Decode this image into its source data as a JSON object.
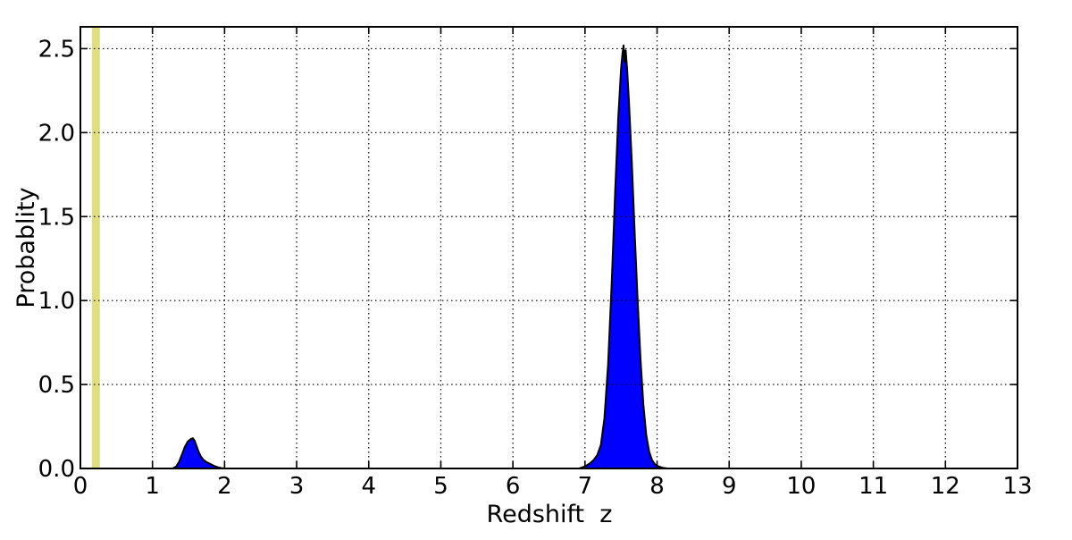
{
  "chart_data": {
    "type": "area",
    "title": "",
    "xlabel": "Redshift  z",
    "ylabel": "Probablity",
    "xlim": [
      0,
      13
    ],
    "ylim": [
      0,
      2.63
    ],
    "xticks": [
      0,
      1,
      2,
      3,
      4,
      5,
      6,
      7,
      8,
      9,
      10,
      11,
      12,
      13
    ],
    "yticks": [
      "0.0",
      "0.5",
      "1.0",
      "1.5",
      "2.0",
      "2.5"
    ],
    "grid": {
      "show": true,
      "linestyle": "dotted",
      "color": "#000000"
    },
    "frame_color": "#000000",
    "background_color": "#ffffff",
    "highlight_band": {
      "x0": 0.16,
      "x1": 0.27,
      "color": "#dfdf80"
    },
    "series": [
      {
        "name": "pdf-peak-low",
        "fill_color": "#0000ff",
        "edge_color": "#000000",
        "points": [
          [
            1.28,
            0.0
          ],
          [
            1.33,
            0.012
          ],
          [
            1.37,
            0.04
          ],
          [
            1.41,
            0.085
          ],
          [
            1.45,
            0.13
          ],
          [
            1.49,
            0.16
          ],
          [
            1.53,
            0.175
          ],
          [
            1.56,
            0.18
          ],
          [
            1.585,
            0.165
          ],
          [
            1.61,
            0.135
          ],
          [
            1.64,
            0.1
          ],
          [
            1.67,
            0.072
          ],
          [
            1.71,
            0.05
          ],
          [
            1.75,
            0.038
          ],
          [
            1.79,
            0.03
          ],
          [
            1.83,
            0.021
          ],
          [
            1.87,
            0.013
          ],
          [
            1.91,
            0.007
          ],
          [
            1.96,
            0.002
          ],
          [
            2.01,
            0.0
          ]
        ]
      },
      {
        "name": "pdf-peak-high",
        "fill_color": "#0000ff",
        "edge_color": "#000000",
        "points": [
          [
            6.92,
            0.0
          ],
          [
            7.0,
            0.012
          ],
          [
            7.06,
            0.028
          ],
          [
            7.12,
            0.05
          ],
          [
            7.17,
            0.08
          ],
          [
            7.22,
            0.14
          ],
          [
            7.27,
            0.3
          ],
          [
            7.32,
            0.62
          ],
          [
            7.37,
            1.1
          ],
          [
            7.42,
            1.66
          ],
          [
            7.46,
            2.08
          ],
          [
            7.5,
            2.38
          ],
          [
            7.52,
            2.47
          ],
          [
            7.535,
            2.52
          ],
          [
            7.55,
            2.42
          ],
          [
            7.565,
            2.49
          ],
          [
            7.585,
            2.37
          ],
          [
            7.61,
            2.18
          ],
          [
            7.65,
            1.82
          ],
          [
            7.69,
            1.4
          ],
          [
            7.73,
            1.0
          ],
          [
            7.77,
            0.65
          ],
          [
            7.81,
            0.38
          ],
          [
            7.85,
            0.2
          ],
          [
            7.89,
            0.1
          ],
          [
            7.93,
            0.05
          ],
          [
            7.97,
            0.025
          ],
          [
            8.02,
            0.012
          ],
          [
            8.08,
            0.004
          ],
          [
            8.14,
            0.0
          ]
        ]
      }
    ]
  }
}
